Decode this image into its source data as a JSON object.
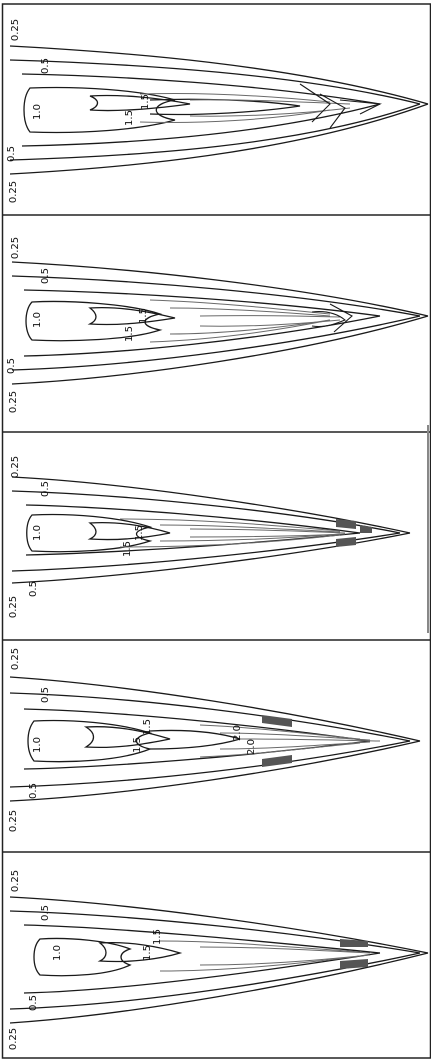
{
  "panels": [
    {
      "id": "1",
      "labels": {
        "l025a": "0.25",
        "l05a": "0.5",
        "l1": "1.0",
        "l15a": "1.5",
        "l15b": "1.5",
        "l05b": "0.5",
        "l025b": "0.25"
      }
    },
    {
      "id": "2",
      "labels": {
        "l025a": "0.25",
        "l05a": "0.5",
        "l1": "1.0",
        "l15a": "1.5",
        "l15b": "1.5",
        "l05b": "0.5",
        "l025b": "0.25"
      }
    },
    {
      "id": "3",
      "labels": {
        "l025a": "0.25",
        "l05a": "0.5",
        "l1": "1.0",
        "l15a": "1.5",
        "l15b": "1.5",
        "l05b": "0.5",
        "l025b": "0.25"
      }
    },
    {
      "id": "4",
      "labels": {
        "l025a": "0.25",
        "l05a": "0.5",
        "l1": "1.0",
        "l15a": "1.5",
        "l15b": "1.5",
        "l05b": "0.5",
        "l025b": "0.25",
        "l20": "2.0",
        "l2x": "2.0"
      }
    },
    {
      "id": "5",
      "labels": {
        "l025a": "0.25",
        "l05a": "0.5",
        "l1": "1.0",
        "l15a": "1.5",
        "l15b": "1.5",
        "l05b": "0.5",
        "l025b": "0.25"
      }
    }
  ],
  "colors": {
    "stroke": "#1a1a1a",
    "dense": "#6a6a6a",
    "frame": "#222222"
  }
}
